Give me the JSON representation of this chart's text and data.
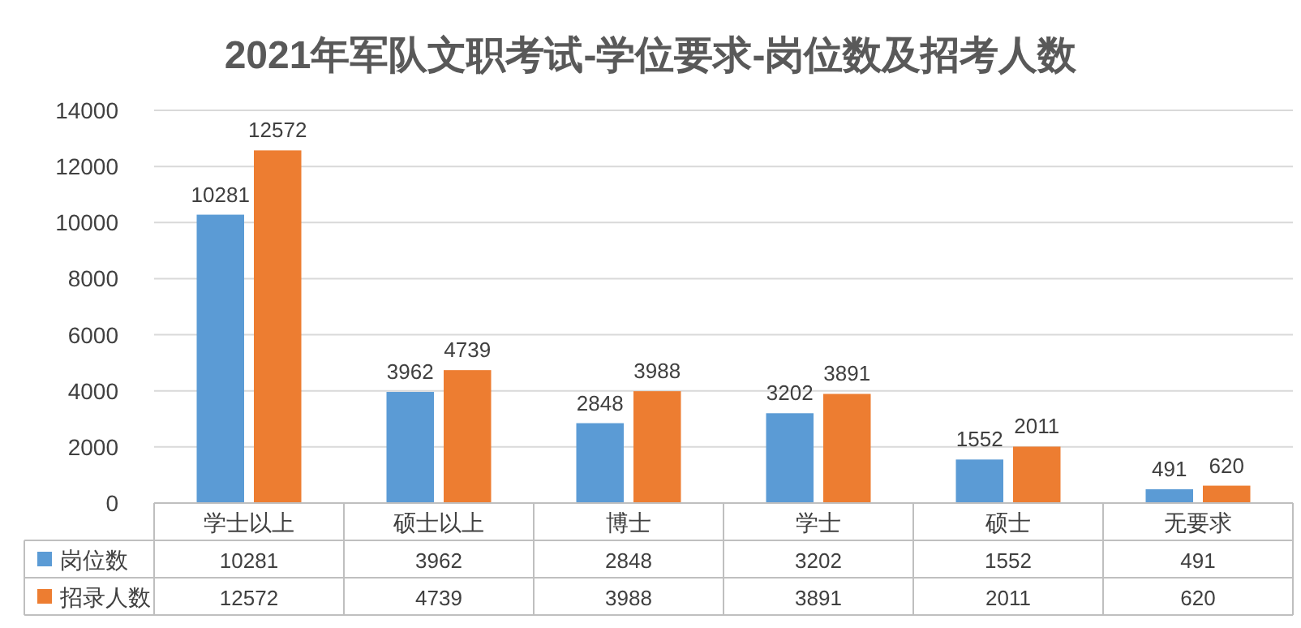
{
  "chart_data": {
    "type": "bar",
    "title": "2021年军队文职考试-学位要求-岗位数及招考人数",
    "categories": [
      "学士以上",
      "硕士以上",
      "博士",
      "学士",
      "硕士",
      "无要求"
    ],
    "series": [
      {
        "name": "岗位数",
        "color": "#5b9bd5",
        "values": [
          10281,
          3962,
          2848,
          3202,
          1552,
          491
        ]
      },
      {
        "name": "招录人数",
        "color": "#ed7d31",
        "values": [
          12572,
          4739,
          3988,
          3891,
          2011,
          620
        ]
      }
    ],
    "annotations": [
      "10281",
      "3962",
      "2848",
      "3202",
      "1552",
      "491",
      "12572",
      "4739",
      "3988",
      "3891",
      "2011",
      "620"
    ],
    "ylim": [
      0,
      14000
    ],
    "yticks": [
      0,
      2000,
      4000,
      6000,
      8000,
      10000,
      12000,
      14000
    ],
    "grid": "y",
    "legend": "bottom",
    "data_labels": true
  }
}
